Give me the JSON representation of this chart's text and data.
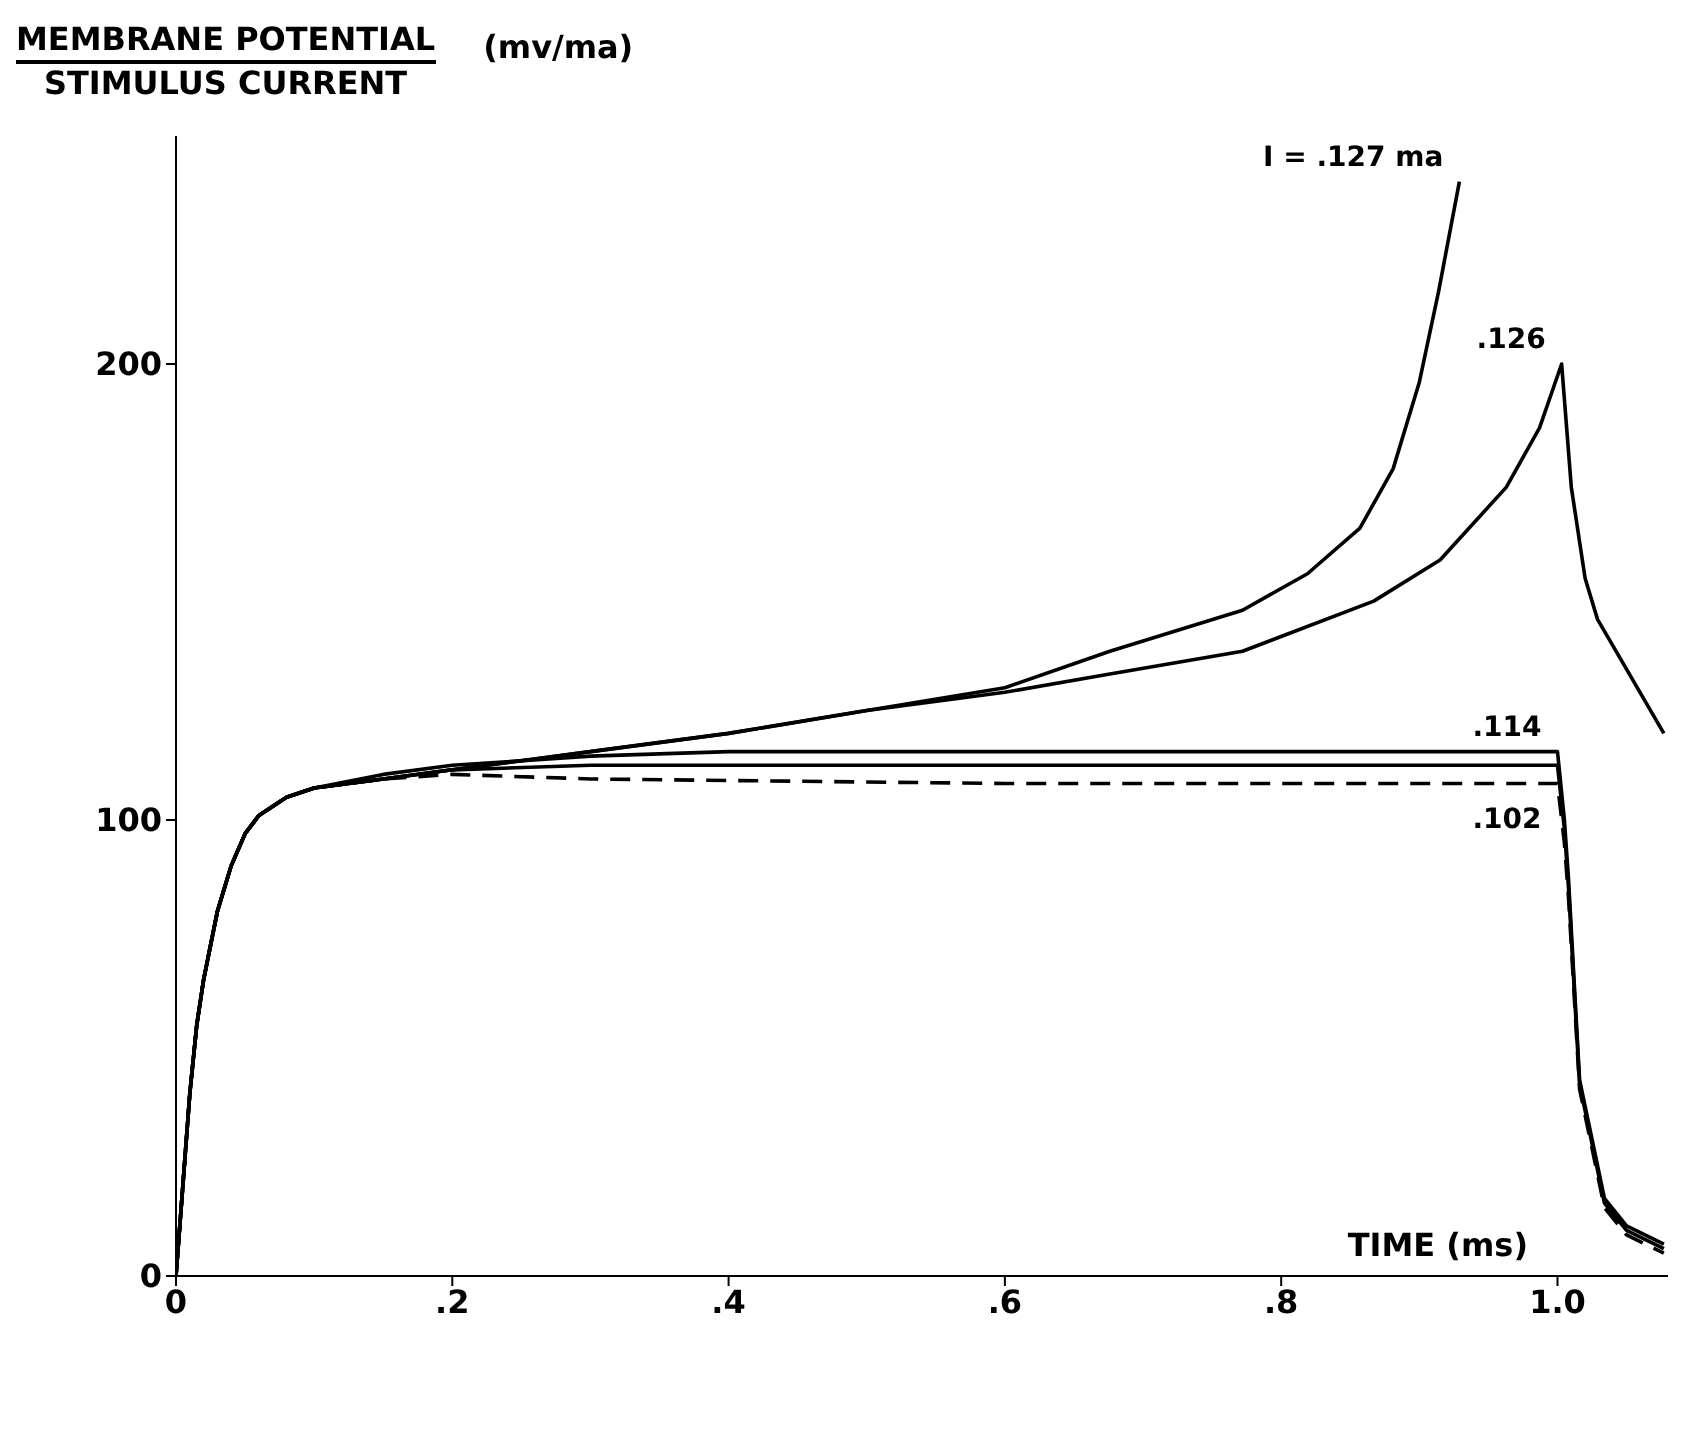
{
  "chart_data": {
    "type": "line",
    "ylabel": "MEMBRANE POTENTIAL\nSTIMULUS CURRENT\n(mv/ma)",
    "xlabel": "TIME (ms)",
    "xlim": [
      0,
      1.08
    ],
    "xticks": [
      0,
      {
        "value": 0.2,
        "label": ".2"
      },
      {
        "value": 0.4,
        "label": ".4"
      },
      {
        "value": 0.6,
        "label": ".6"
      },
      {
        "value": 0.8,
        "label": ".8"
      },
      {
        "value": 1.0,
        "label": "1.0"
      }
    ],
    "ylim": [
      0,
      250
    ],
    "yticks": [
      0,
      100,
      200
    ],
    "marker": "none",
    "series": [
      {
        "name": "I = .127 ma",
        "color": "#000000",
        "line_style": "solid",
        "x": [
          0,
          0.005,
          0.01,
          0.015,
          0.02,
          0.03,
          0.04,
          0.05,
          0.06,
          0.08,
          0.1,
          0.15,
          0.2,
          0.3,
          0.4,
          0.5,
          0.6,
          0.676,
          0.772,
          0.819,
          0.857,
          0.881,
          0.9,
          0.914,
          0.929
        ],
        "values": [
          0,
          20,
          40,
          55,
          65,
          80,
          90,
          97,
          101,
          105,
          107,
          109,
          111,
          115,
          119,
          124,
          129,
          137,
          146,
          154,
          164,
          177,
          196,
          216,
          240
        ]
      },
      {
        "name": ".126",
        "color": "#000000",
        "line_style": "solid",
        "x": [
          0,
          0.005,
          0.01,
          0.015,
          0.02,
          0.03,
          0.04,
          0.05,
          0.06,
          0.08,
          0.1,
          0.15,
          0.2,
          0.3,
          0.4,
          0.5,
          0.6,
          0.676,
          0.772,
          0.867,
          0.915,
          0.963,
          0.987,
          1.003,
          1.01,
          1.02,
          1.029,
          1.077
        ],
        "values": [
          0,
          20,
          40,
          55,
          65,
          80,
          90,
          97,
          101,
          105,
          107,
          109,
          111,
          115,
          119,
          124,
          128,
          132,
          137,
          148,
          157,
          173,
          186,
          200,
          173,
          153,
          144,
          119
        ]
      },
      {
        "name": ".114",
        "color": "#000000",
        "line_style": "solid",
        "x": [
          0,
          0.005,
          0.01,
          0.015,
          0.02,
          0.03,
          0.04,
          0.05,
          0.06,
          0.08,
          0.1,
          0.15,
          0.2,
          0.3,
          0.4,
          0.6,
          0.8,
          1.0,
          1.005,
          1.008,
          1.016,
          1.034,
          1.05,
          1.077
        ],
        "values": [
          0,
          20,
          40,
          55,
          65,
          80,
          90,
          97,
          101,
          105,
          107,
          110,
          112,
          114,
          115,
          115,
          115,
          115,
          100,
          87,
          43,
          17,
          11,
          7
        ]
      },
      {
        "color": "#000000",
        "line_style": "solid",
        "x": [
          0,
          0.005,
          0.01,
          0.015,
          0.02,
          0.03,
          0.04,
          0.05,
          0.06,
          0.08,
          0.1,
          0.15,
          0.2,
          0.3,
          0.6,
          1.0,
          1.005,
          1.008,
          1.016,
          1.034,
          1.05,
          1.077
        ],
        "values": [
          0,
          20,
          40,
          55,
          65,
          80,
          90,
          97,
          101,
          105,
          107,
          109,
          111,
          112,
          112,
          112,
          98,
          85,
          42,
          16,
          10,
          6
        ]
      },
      {
        "name": ".102",
        "color": "#000000",
        "line_style": "dashed",
        "x": [
          0,
          0.005,
          0.01,
          0.015,
          0.02,
          0.03,
          0.04,
          0.05,
          0.06,
          0.08,
          0.1,
          0.15,
          0.2,
          0.3,
          0.6,
          1.0,
          1.005,
          1.008,
          1.016,
          1.034,
          1.05,
          1.077
        ],
        "values": [
          0,
          20,
          40,
          55,
          65,
          80,
          90,
          97,
          101,
          105,
          107,
          109,
          110,
          109,
          108,
          108,
          95,
          83,
          41,
          15,
          9,
          5
        ]
      }
    ]
  }
}
